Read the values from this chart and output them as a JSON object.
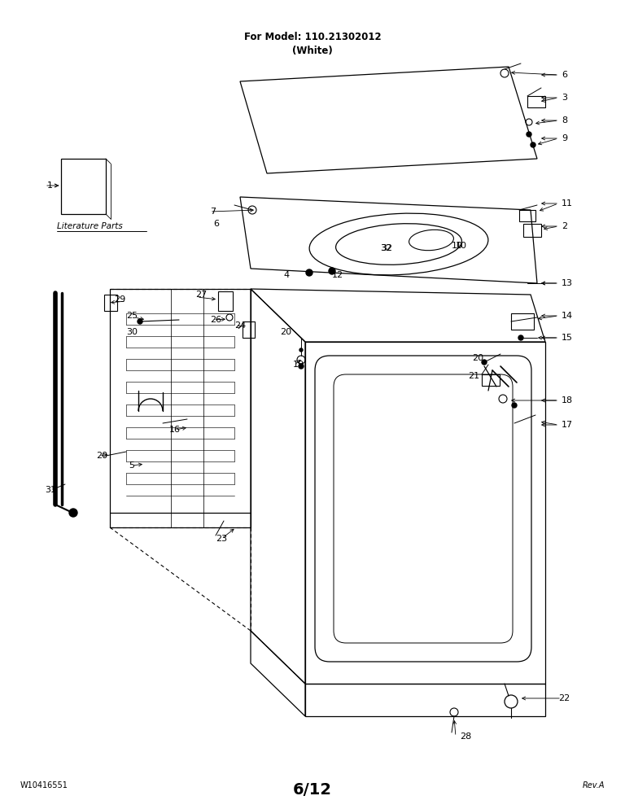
{
  "title_line1": "For Model: 110.21302012",
  "title_line2": "(White)",
  "footer_left": "W10416551",
  "footer_center": "6/12",
  "footer_right": "Rev.A",
  "background_color": "#ffffff",
  "black": "#000000",
  "lw_main": 0.9,
  "lw_thin": 0.6,
  "label_fontsize": 7.5,
  "title_fontsize": 8.5,
  "footer_fontsize": 7.0,
  "page_number_fontsize": 14
}
